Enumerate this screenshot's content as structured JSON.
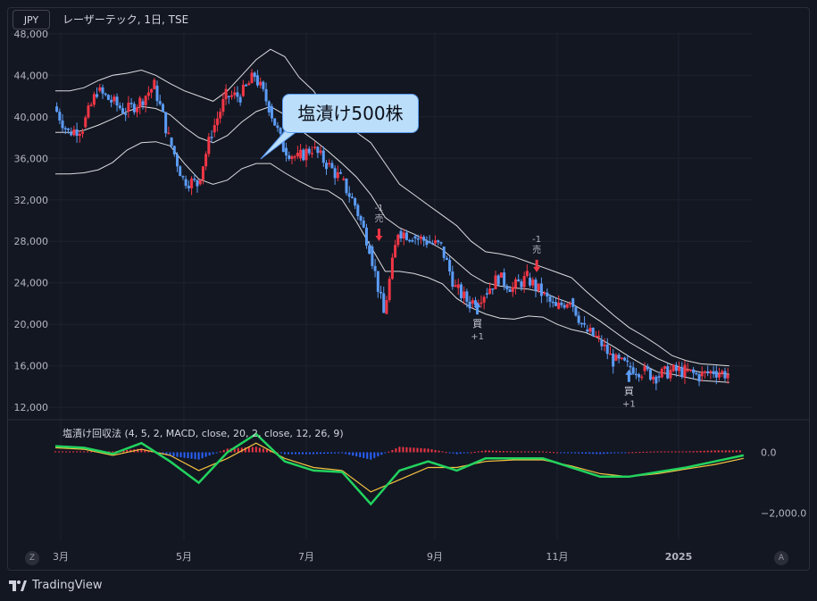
{
  "header": {
    "currency": "JPY",
    "symbol_title": "レーザーテック, 1日, TSE"
  },
  "indicator": {
    "title": "塩漬け回収法 (4, 5, 2, MACD, close, 20, 2, close, 12, 26, 9)",
    "levels": [
      "0.0",
      "−2,000.0"
    ]
  },
  "annotation": {
    "callout": "塩漬け500株"
  },
  "signals": [
    {
      "label": "売",
      "qty": "-1",
      "dir": "sell",
      "date": "2024-08-02",
      "price": 27500
    },
    {
      "label": "買",
      "qty": "+1",
      "dir": "buy",
      "date": "2024-09-19",
      "price": 22500
    },
    {
      "label": "売",
      "qty": "-1",
      "dir": "sell",
      "date": "2024-10-18",
      "price": 24500
    },
    {
      "label": "買",
      "qty": "+1",
      "dir": "buy",
      "date": "2024-12-02",
      "price": 16000
    }
  ],
  "footer": {
    "brand": "TradingView",
    "corner_left": "Z",
    "corner_right": "A"
  },
  "colors": {
    "up": "#f23645",
    "down": "#5b9cf6",
    "band": "#ffffff",
    "macd_fast": "#22d35e",
    "macd_slow": "#f5c242",
    "hist_pos": "#f23645",
    "hist_neg": "#2962ff",
    "background": "#131722"
  },
  "chart_data": {
    "type": "line",
    "title": "レーザーテック, 1日, TSE",
    "x_ticks": [
      "3月",
      "5月",
      "7月",
      "9月",
      "11月",
      "2025"
    ],
    "y_ticks": [
      "48,000",
      "44,000",
      "40,000",
      "36,000",
      "32,000",
      "28,000",
      "24,000",
      "20,000",
      "16,000",
      "12,000"
    ],
    "ylim": [
      11500,
      48500
    ],
    "x": [
      "2024-02-26",
      "2024-03-04",
      "2024-03-11",
      "2024-03-18",
      "2024-03-25",
      "2024-04-01",
      "2024-04-08",
      "2024-04-15",
      "2024-04-22",
      "2024-04-29",
      "2024-05-06",
      "2024-05-13",
      "2024-05-20",
      "2024-05-27",
      "2024-06-03",
      "2024-06-10",
      "2024-06-17",
      "2024-06-24",
      "2024-07-01",
      "2024-07-08",
      "2024-07-15",
      "2024-07-22",
      "2024-07-29",
      "2024-08-05",
      "2024-08-12",
      "2024-08-19",
      "2024-08-26",
      "2024-09-02",
      "2024-09-09",
      "2024-09-16",
      "2024-09-23",
      "2024-09-30",
      "2024-10-07",
      "2024-10-14",
      "2024-10-21",
      "2024-10-28",
      "2024-11-04",
      "2024-11-11",
      "2024-11-18",
      "2024-11-25",
      "2024-12-02",
      "2024-12-09",
      "2024-12-16",
      "2024-12-23",
      "2024-12-30",
      "2025-01-06",
      "2025-01-13",
      "2025-01-20"
    ],
    "series": [
      {
        "values": [
          41000,
          38500,
          39000,
          42500,
          41500,
          40500,
          41500,
          43000,
          38000,
          34000,
          33500,
          38500,
          42000,
          42000,
          44000,
          41000,
          37000,
          36000,
          37000,
          35500,
          34000,
          31500,
          27500,
          21000,
          29000,
          28500,
          28000,
          27500,
          23500,
          22000,
          23000,
          24500,
          23500,
          24500,
          23000,
          21500,
          22500,
          19500,
          18500,
          16500,
          16000,
          15500,
          15000,
          15500,
          15500,
          15000,
          15500,
          15200
        ]
      },
      {
        "name": "",
        "values": [
          38500,
          38500,
          38700,
          39200,
          39800,
          40500,
          41000,
          40800,
          40200,
          39000,
          38000,
          37500,
          38200,
          39500,
          40500,
          41000,
          40200,
          38800,
          37800,
          36700,
          35500,
          34200,
          32500,
          30300,
          29300,
          28700,
          28000,
          27200,
          26000,
          24800,
          24000,
          23700,
          23500,
          23400,
          23100,
          22500,
          22000,
          21200,
          20300,
          19300,
          18300,
          17500,
          16700,
          16100,
          15700,
          15400,
          15300,
          15200
        ]
      },
      {
        "name": "",
        "values": [
          42500,
          42500,
          42800,
          43500,
          44000,
          44200,
          44500,
          44000,
          43200,
          42500,
          42000,
          41500,
          42500,
          44000,
          45500,
          46500,
          45800,
          43800,
          42500,
          40500,
          39000,
          38500,
          37500,
          35500,
          33500,
          32500,
          31500,
          30500,
          29500,
          28000,
          27000,
          26800,
          26500,
          26000,
          25500,
          25000,
          24500,
          23200,
          22000,
          20800,
          19700,
          18900,
          18000,
          17000,
          16500,
          16200,
          16100,
          16000
        ]
      },
      {
        "name": "",
        "values": [
          34500,
          34500,
          34600,
          34900,
          35600,
          36800,
          37500,
          37600,
          37200,
          35500,
          34000,
          33500,
          33900,
          35000,
          35500,
          35500,
          34600,
          33800,
          33100,
          32900,
          32000,
          29900,
          27500,
          25100,
          25100,
          24900,
          24500,
          23900,
          22500,
          21600,
          21000,
          20600,
          20500,
          20800,
          20700,
          20000,
          19500,
          19200,
          18600,
          17800,
          16900,
          16100,
          15400,
          15200,
          14900,
          14600,
          14500,
          14400
        ]
      }
    ],
    "macd": {
      "x": [
        "2024-02-26",
        "2024-03-11",
        "2024-03-25",
        "2024-04-08",
        "2024-04-22",
        "2024-05-06",
        "2024-05-20",
        "2024-06-03",
        "2024-06-17",
        "2024-07-01",
        "2024-07-15",
        "2024-07-29",
        "2024-08-12",
        "2024-08-26",
        "2024-09-09",
        "2024-09-23",
        "2024-10-07",
        "2024-10-21",
        "2024-11-04",
        "2024-11-18",
        "2024-12-02",
        "2024-12-16",
        "2024-12-30",
        "2025-01-13",
        "2025-01-27"
      ],
      "fast": [
        200,
        150,
        -50,
        300,
        -300,
        -1000,
        0,
        600,
        -300,
        -600,
        -650,
        -1700,
        -600,
        -300,
        -600,
        -200,
        -200,
        -200,
        -500,
        -800,
        -800,
        -650,
        -500,
        -300,
        -100
      ],
      "slow": [
        150,
        100,
        -100,
        100,
        -100,
        -600,
        -200,
        300,
        -200,
        -500,
        -600,
        -1300,
        -900,
        -500,
        -500,
        -300,
        -250,
        -250,
        -450,
        -700,
        -800,
        -700,
        -550,
        -400,
        -200
      ],
      "ylim": [
        -2800,
        600
      ]
    }
  }
}
